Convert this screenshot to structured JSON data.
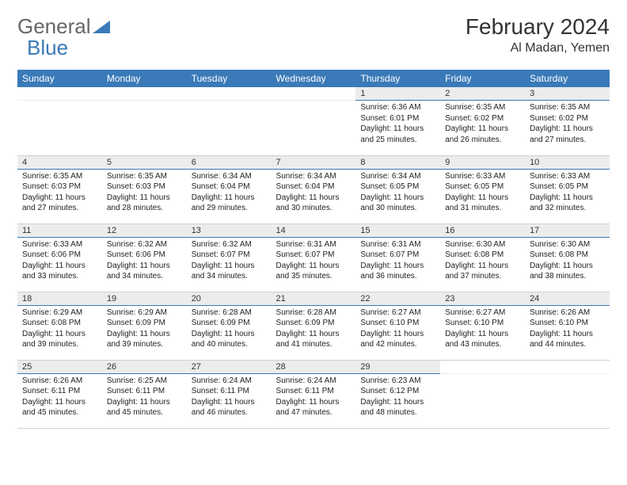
{
  "brand": {
    "general": "General",
    "blue": "Blue"
  },
  "title": "February 2024",
  "location": "Al Madan, Yemen",
  "colors": {
    "header_bg": "#3a7ab8",
    "header_text": "#ffffff",
    "daynum_bg": "#ececec",
    "daynum_border": "#3a7ab8",
    "cell_border": "#d0d0d0",
    "text": "#222222",
    "logo_gray": "#666666",
    "logo_blue": "#3a7ab8"
  },
  "day_headers": [
    "Sunday",
    "Monday",
    "Tuesday",
    "Wednesday",
    "Thursday",
    "Friday",
    "Saturday"
  ],
  "weeks": [
    [
      null,
      null,
      null,
      null,
      {
        "n": "1",
        "sr": "6:36 AM",
        "ss": "6:01 PM",
        "dl": "11 hours and 25 minutes."
      },
      {
        "n": "2",
        "sr": "6:35 AM",
        "ss": "6:02 PM",
        "dl": "11 hours and 26 minutes."
      },
      {
        "n": "3",
        "sr": "6:35 AM",
        "ss": "6:02 PM",
        "dl": "11 hours and 27 minutes."
      }
    ],
    [
      {
        "n": "4",
        "sr": "6:35 AM",
        "ss": "6:03 PM",
        "dl": "11 hours and 27 minutes."
      },
      {
        "n": "5",
        "sr": "6:35 AM",
        "ss": "6:03 PM",
        "dl": "11 hours and 28 minutes."
      },
      {
        "n": "6",
        "sr": "6:34 AM",
        "ss": "6:04 PM",
        "dl": "11 hours and 29 minutes."
      },
      {
        "n": "7",
        "sr": "6:34 AM",
        "ss": "6:04 PM",
        "dl": "11 hours and 30 minutes."
      },
      {
        "n": "8",
        "sr": "6:34 AM",
        "ss": "6:05 PM",
        "dl": "11 hours and 30 minutes."
      },
      {
        "n": "9",
        "sr": "6:33 AM",
        "ss": "6:05 PM",
        "dl": "11 hours and 31 minutes."
      },
      {
        "n": "10",
        "sr": "6:33 AM",
        "ss": "6:05 PM",
        "dl": "11 hours and 32 minutes."
      }
    ],
    [
      {
        "n": "11",
        "sr": "6:33 AM",
        "ss": "6:06 PM",
        "dl": "11 hours and 33 minutes."
      },
      {
        "n": "12",
        "sr": "6:32 AM",
        "ss": "6:06 PM",
        "dl": "11 hours and 34 minutes."
      },
      {
        "n": "13",
        "sr": "6:32 AM",
        "ss": "6:07 PM",
        "dl": "11 hours and 34 minutes."
      },
      {
        "n": "14",
        "sr": "6:31 AM",
        "ss": "6:07 PM",
        "dl": "11 hours and 35 minutes."
      },
      {
        "n": "15",
        "sr": "6:31 AM",
        "ss": "6:07 PM",
        "dl": "11 hours and 36 minutes."
      },
      {
        "n": "16",
        "sr": "6:30 AM",
        "ss": "6:08 PM",
        "dl": "11 hours and 37 minutes."
      },
      {
        "n": "17",
        "sr": "6:30 AM",
        "ss": "6:08 PM",
        "dl": "11 hours and 38 minutes."
      }
    ],
    [
      {
        "n": "18",
        "sr": "6:29 AM",
        "ss": "6:08 PM",
        "dl": "11 hours and 39 minutes."
      },
      {
        "n": "19",
        "sr": "6:29 AM",
        "ss": "6:09 PM",
        "dl": "11 hours and 39 minutes."
      },
      {
        "n": "20",
        "sr": "6:28 AM",
        "ss": "6:09 PM",
        "dl": "11 hours and 40 minutes."
      },
      {
        "n": "21",
        "sr": "6:28 AM",
        "ss": "6:09 PM",
        "dl": "11 hours and 41 minutes."
      },
      {
        "n": "22",
        "sr": "6:27 AM",
        "ss": "6:10 PM",
        "dl": "11 hours and 42 minutes."
      },
      {
        "n": "23",
        "sr": "6:27 AM",
        "ss": "6:10 PM",
        "dl": "11 hours and 43 minutes."
      },
      {
        "n": "24",
        "sr": "6:26 AM",
        "ss": "6:10 PM",
        "dl": "11 hours and 44 minutes."
      }
    ],
    [
      {
        "n": "25",
        "sr": "6:26 AM",
        "ss": "6:11 PM",
        "dl": "11 hours and 45 minutes."
      },
      {
        "n": "26",
        "sr": "6:25 AM",
        "ss": "6:11 PM",
        "dl": "11 hours and 45 minutes."
      },
      {
        "n": "27",
        "sr": "6:24 AM",
        "ss": "6:11 PM",
        "dl": "11 hours and 46 minutes."
      },
      {
        "n": "28",
        "sr": "6:24 AM",
        "ss": "6:11 PM",
        "dl": "11 hours and 47 minutes."
      },
      {
        "n": "29",
        "sr": "6:23 AM",
        "ss": "6:12 PM",
        "dl": "11 hours and 48 minutes."
      },
      null,
      null
    ]
  ],
  "labels": {
    "sunrise": "Sunrise:",
    "sunset": "Sunset:",
    "daylight": "Daylight:"
  }
}
